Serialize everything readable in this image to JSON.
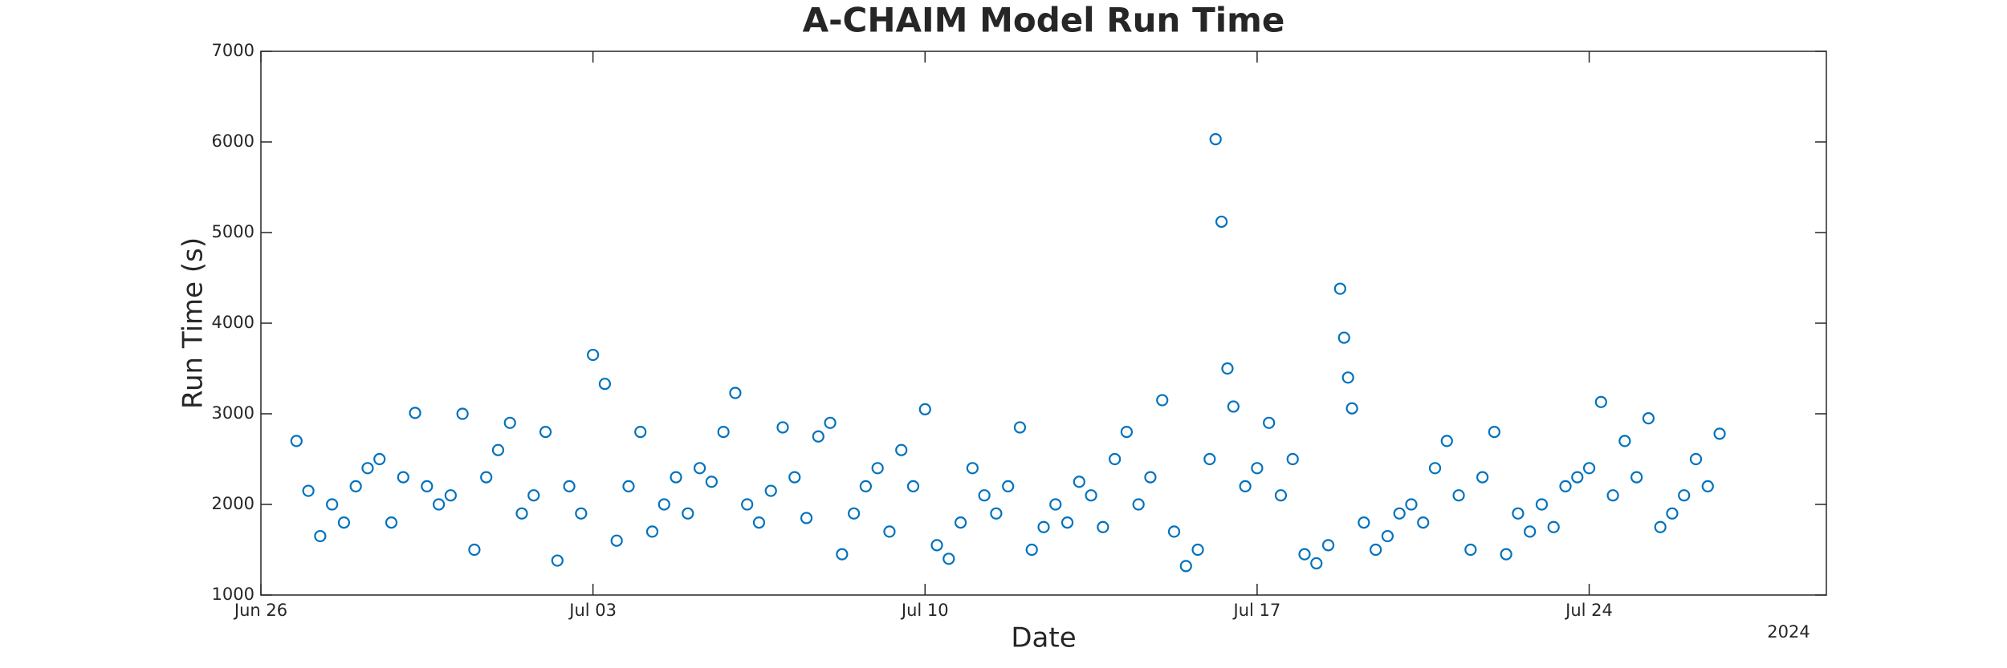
{
  "chart_data": {
    "type": "scatter",
    "title": "A-CHAIM Model Run Time",
    "x_label": "Date",
    "y_label": "Run Time (s)",
    "x_year_label": "2024",
    "xlim": [
      "2024-06-26T00:00",
      "2024-07-29T00:00"
    ],
    "xticks": [
      {
        "value": "2024-06-26T00:00",
        "label": "Jun 26"
      },
      {
        "value": "2024-07-03T00:00",
        "label": "Jul 03"
      },
      {
        "value": "2024-07-10T00:00",
        "label": "Jul 10"
      },
      {
        "value": "2024-07-17T00:00",
        "label": "Jul 17"
      },
      {
        "value": "2024-07-24T00:00",
        "label": "Jul 24"
      }
    ],
    "ylim": [
      1000,
      7000
    ],
    "yticks": [
      1000,
      2000,
      3000,
      4000,
      5000,
      6000,
      7000
    ],
    "series": [
      {
        "color": "#0072bd",
        "x": [
          "2024-06-26T18:00",
          "2024-06-27T00:00",
          "2024-06-27T06:00",
          "2024-06-27T12:00",
          "2024-06-27T18:00",
          "2024-06-28T00:00",
          "2024-06-28T06:00",
          "2024-06-28T12:00",
          "2024-06-28T18:00",
          "2024-06-29T00:00",
          "2024-06-29T06:00",
          "2024-06-29T12:00",
          "2024-06-29T18:00",
          "2024-06-30T00:00",
          "2024-06-30T06:00",
          "2024-06-30T12:00",
          "2024-06-30T18:00",
          "2024-07-01T00:00",
          "2024-07-01T06:00",
          "2024-07-01T12:00",
          "2024-07-01T18:00",
          "2024-07-02T00:00",
          "2024-07-02T06:00",
          "2024-07-02T12:00",
          "2024-07-02T18:00",
          "2024-07-03T00:00",
          "2024-07-03T06:00",
          "2024-07-03T12:00",
          "2024-07-03T18:00",
          "2024-07-04T00:00",
          "2024-07-04T06:00",
          "2024-07-04T12:00",
          "2024-07-04T18:00",
          "2024-07-05T00:00",
          "2024-07-05T06:00",
          "2024-07-05T12:00",
          "2024-07-05T18:00",
          "2024-07-06T00:00",
          "2024-07-06T06:00",
          "2024-07-06T12:00",
          "2024-07-06T18:00",
          "2024-07-07T00:00",
          "2024-07-07T06:00",
          "2024-07-07T12:00",
          "2024-07-07T18:00",
          "2024-07-08T00:00",
          "2024-07-08T06:00",
          "2024-07-08T12:00",
          "2024-07-08T18:00",
          "2024-07-09T00:00",
          "2024-07-09T06:00",
          "2024-07-09T12:00",
          "2024-07-09T18:00",
          "2024-07-10T00:00",
          "2024-07-10T06:00",
          "2024-07-10T12:00",
          "2024-07-10T18:00",
          "2024-07-11T00:00",
          "2024-07-11T06:00",
          "2024-07-11T12:00",
          "2024-07-11T18:00",
          "2024-07-12T00:00",
          "2024-07-12T06:00",
          "2024-07-12T12:00",
          "2024-07-12T18:00",
          "2024-07-13T00:00",
          "2024-07-13T06:00",
          "2024-07-13T12:00",
          "2024-07-13T18:00",
          "2024-07-14T00:00",
          "2024-07-14T06:00",
          "2024-07-14T12:00",
          "2024-07-14T18:00",
          "2024-07-15T00:00",
          "2024-07-15T06:00",
          "2024-07-15T12:00",
          "2024-07-15T18:00",
          "2024-07-16T00:00",
          "2024-07-16T03:00",
          "2024-07-16T06:00",
          "2024-07-16T09:00",
          "2024-07-16T12:00",
          "2024-07-16T18:00",
          "2024-07-17T00:00",
          "2024-07-17T06:00",
          "2024-07-17T12:00",
          "2024-07-17T18:00",
          "2024-07-18T00:00",
          "2024-07-18T06:00",
          "2024-07-18T12:00",
          "2024-07-18T18:00",
          "2024-07-18T20:00",
          "2024-07-18T22:00",
          "2024-07-19T00:00",
          "2024-07-19T06:00",
          "2024-07-19T12:00",
          "2024-07-19T18:00",
          "2024-07-20T00:00",
          "2024-07-20T06:00",
          "2024-07-20T12:00",
          "2024-07-20T18:00",
          "2024-07-21T00:00",
          "2024-07-21T06:00",
          "2024-07-21T12:00",
          "2024-07-21T18:00",
          "2024-07-22T00:00",
          "2024-07-22T06:00",
          "2024-07-22T12:00",
          "2024-07-22T18:00",
          "2024-07-23T00:00",
          "2024-07-23T06:00",
          "2024-07-23T12:00",
          "2024-07-23T18:00",
          "2024-07-24T00:00",
          "2024-07-24T06:00",
          "2024-07-24T12:00",
          "2024-07-24T18:00",
          "2024-07-25T00:00",
          "2024-07-25T06:00",
          "2024-07-25T12:00",
          "2024-07-25T18:00",
          "2024-07-26T00:00",
          "2024-07-26T06:00",
          "2024-07-26T12:00",
          "2024-07-26T18:00"
        ],
        "values": [
          2700,
          2150,
          1650,
          2000,
          1800,
          2200,
          2400,
          2500,
          1800,
          2300,
          3010,
          2200,
          2000,
          2100,
          3000,
          1500,
          2300,
          2600,
          2900,
          1900,
          2100,
          2800,
          1380,
          2200,
          1900,
          3650,
          3330,
          1600,
          2200,
          2800,
          1700,
          2000,
          2300,
          1900,
          2400,
          2250,
          2800,
          3230,
          2000,
          1800,
          2150,
          2850,
          2300,
          1850,
          2750,
          2900,
          1450,
          1900,
          2200,
          2400,
          1700,
          2600,
          2200,
          3050,
          1550,
          1400,
          1800,
          2400,
          2100,
          1900,
          2200,
          2850,
          1500,
          1750,
          2000,
          1800,
          2250,
          2100,
          1750,
          2500,
          2800,
          2000,
          2300,
          3150,
          1700,
          1320,
          1500,
          2500,
          6030,
          5120,
          3500,
          3080,
          2200,
          2400,
          2900,
          2100,
          2500,
          1450,
          1350,
          1550,
          4380,
          3840,
          3400,
          3060,
          1800,
          1500,
          1650,
          1900,
          2000,
          1800,
          2400,
          2700,
          2100,
          1500,
          2300,
          2800,
          1450,
          1900,
          1700,
          2000,
          1750,
          2200,
          2300,
          2400,
          3130,
          2100,
          2700,
          2300,
          2950,
          1750,
          1900,
          2100,
          2500,
          2200,
          2780
        ]
      }
    ]
  }
}
